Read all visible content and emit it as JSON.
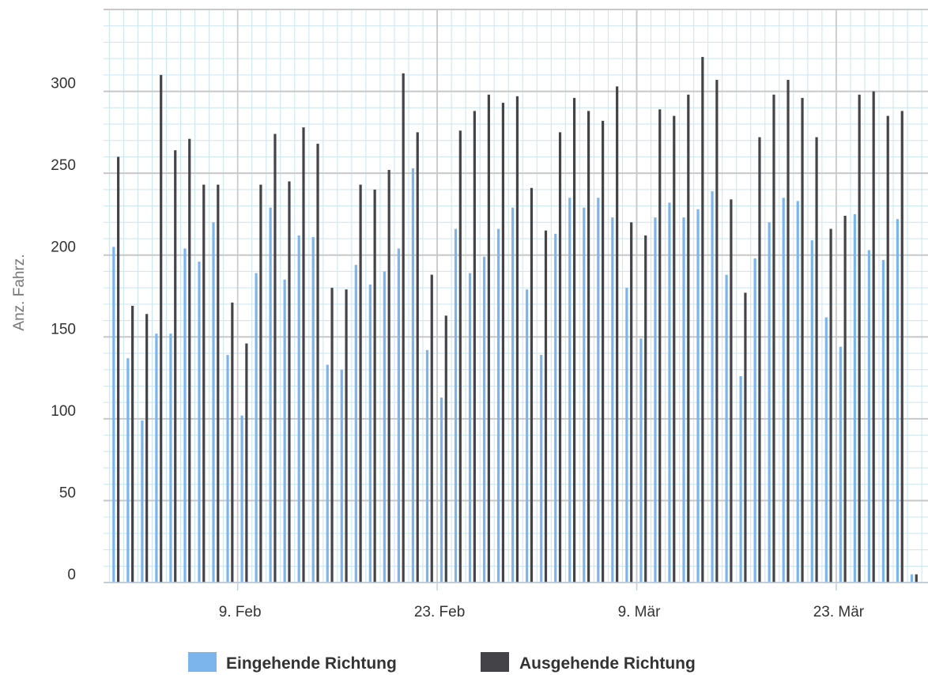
{
  "chart_data": {
    "type": "bar",
    "title": "",
    "xlabel": "",
    "ylabel": "Anz. Fahrz.",
    "ylim": [
      0,
      350
    ],
    "yticks": [
      0,
      50,
      100,
      150,
      200,
      250,
      300
    ],
    "ytick_labels": [
      "0",
      "50",
      "100",
      "150",
      "200",
      "250",
      "300"
    ],
    "xtick_labels": [
      "9. Feb",
      "23. Feb",
      "9. Mär",
      "23. Mär"
    ],
    "xtick_day_index": [
      9,
      23,
      37,
      51
    ],
    "grid": true,
    "legend_position": "bottom",
    "colors": {
      "incoming": "#7cb5ec",
      "outgoing": "#434348",
      "grid_major": "#c8c8c8",
      "grid_minor": "#c9e6ef"
    },
    "categories": [
      "31. Jan",
      "1. Feb",
      "2. Feb",
      "3. Feb",
      "4. Feb",
      "5. Feb",
      "6. Feb",
      "7. Feb",
      "8. Feb",
      "9. Feb",
      "10. Feb",
      "11. Feb",
      "12. Feb",
      "13. Feb",
      "14. Feb",
      "15. Feb",
      "16. Feb",
      "17. Feb",
      "18. Feb",
      "19. Feb",
      "20. Feb",
      "21. Feb",
      "22. Feb",
      "23. Feb",
      "24. Feb",
      "25. Feb",
      "26. Feb",
      "27. Feb",
      "28. Feb",
      "29. Feb",
      "1. Mär",
      "2. Mär",
      "3. Mär",
      "4. Mär",
      "5. Mär",
      "6. Mär",
      "7. Mär",
      "8. Mär",
      "9. Mär",
      "10. Mär",
      "11. Mär",
      "12. Mär",
      "13. Mär",
      "14. Mär",
      "15. Mär",
      "16. Mär",
      "17. Mär",
      "18. Mär",
      "19. Mär",
      "20. Mär",
      "21. Mär",
      "22. Mär",
      "23. Mär",
      "24. Mär",
      "25. Mär",
      "26. Mär",
      "27. Mär"
    ],
    "series": [
      {
        "name": "Eingehende Richtung",
        "color": "#7cb5ec",
        "values": [
          205,
          137,
          99,
          152,
          152,
          204,
          196,
          220,
          139,
          102,
          189,
          229,
          185,
          212,
          211,
          133,
          130,
          194,
          182,
          190,
          204,
          253,
          142,
          113,
          216,
          189,
          199,
          216,
          229,
          179,
          139,
          213,
          235,
          229,
          235,
          223,
          180,
          149,
          223,
          232,
          223,
          228,
          239,
          188,
          126,
          198,
          220,
          235,
          233,
          209,
          162,
          144,
          225,
          203,
          197,
          222,
          5
        ]
      },
      {
        "name": "Ausgehende Richtung",
        "color": "#434348",
        "values": [
          260,
          169,
          164,
          310,
          264,
          271,
          243,
          243,
          171,
          146,
          243,
          274,
          245,
          278,
          268,
          180,
          179,
          243,
          240,
          252,
          311,
          275,
          188,
          163,
          276,
          288,
          298,
          293,
          297,
          241,
          215,
          275,
          296,
          288,
          282,
          303,
          220,
          212,
          289,
          285,
          298,
          321,
          307,
          234,
          177,
          272,
          298,
          307,
          296,
          272,
          216,
          224,
          298,
          300,
          285,
          288,
          5
        ]
      }
    ]
  }
}
